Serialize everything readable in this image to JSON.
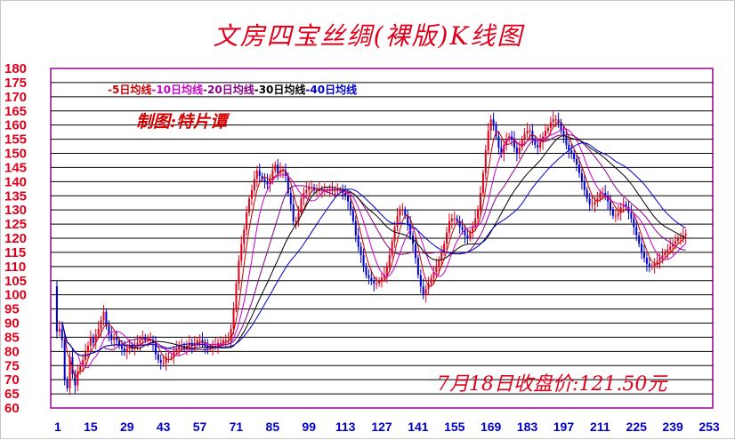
{
  "chart_data": {
    "type": "candlestick",
    "title": "文房四宝丝绸(裸版)K线图",
    "author_note": "制图:特片谭",
    "close_note": "7月18日收盘价:121.50元",
    "ylim": [
      60,
      180
    ],
    "y_ticks": [
      180,
      175,
      170,
      165,
      160,
      155,
      150,
      145,
      140,
      135,
      130,
      125,
      120,
      115,
      110,
      105,
      100,
      95,
      90,
      85,
      80,
      75,
      70,
      65,
      60
    ],
    "x_range": [
      1,
      253
    ],
    "x_ticks": [
      1,
      15,
      29,
      43,
      57,
      71,
      85,
      99,
      113,
      127,
      141,
      155,
      169,
      183,
      197,
      211,
      225,
      239,
      253
    ],
    "legend": [
      {
        "label": "-5日均线",
        "color": "#cc0000"
      },
      {
        "label": "-10日均线",
        "color": "#cc00cc"
      },
      {
        "label": "-20日均线",
        "color": "#880088"
      },
      {
        "label": "-30日均线",
        "color": "#000000"
      },
      {
        "label": "-40日均线",
        "color": "#0000cc"
      }
    ],
    "up_color": "#e0001b",
    "down_color": "#0000cc",
    "series": [
      {
        "name": "close",
        "values": [
          103,
          87,
          88,
          84,
          70,
          67,
          78,
          72,
          68,
          73,
          75,
          77,
          80,
          82,
          85,
          83,
          86,
          88,
          91,
          94,
          89,
          86,
          84,
          85,
          84,
          82,
          81,
          80,
          81,
          82,
          81,
          82,
          83,
          84,
          85,
          84,
          84,
          84,
          83,
          79,
          77,
          76,
          76,
          78,
          78,
          78,
          80,
          81,
          82,
          82,
          81,
          82,
          83,
          82,
          83,
          84,
          84,
          83,
          82,
          81,
          81,
          82,
          82,
          83,
          83,
          84,
          84,
          84,
          88,
          95,
          104,
          112,
          118,
          123,
          129,
          134,
          137,
          141,
          144,
          142,
          141,
          140,
          139,
          141,
          144,
          146,
          143,
          144,
          144,
          142,
          136,
          132,
          126,
          126,
          129,
          134,
          136,
          137,
          138,
          138,
          137,
          137,
          137,
          137,
          137,
          137,
          137,
          137,
          137,
          137,
          137,
          136,
          135,
          133,
          130,
          126,
          121,
          117,
          114,
          110,
          107,
          106,
          105,
          104,
          104,
          105,
          106,
          107,
          110,
          114,
          119,
          124,
          128,
          130,
          130,
          128,
          125,
          121,
          118,
          113,
          107,
          103,
          100,
          102,
          104,
          106,
          108,
          110,
          112,
          115,
          118,
          122,
          126,
          127,
          127,
          126,
          124,
          123,
          121,
          120,
          122,
          124,
          127,
          130,
          136,
          143,
          151,
          158,
          162,
          160,
          156,
          152,
          150,
          153,
          155,
          156,
          155,
          152,
          150,
          152,
          155,
          157,
          158,
          158,
          155,
          153,
          152,
          154,
          156,
          158,
          159,
          161,
          162,
          162,
          161,
          158,
          156,
          153,
          151,
          150,
          148,
          146,
          143,
          140,
          137,
          134,
          132,
          132,
          133,
          134,
          136,
          136,
          135,
          133,
          130,
          128,
          128,
          129,
          131,
          132,
          131,
          129,
          127,
          124,
          121,
          118,
          115,
          113,
          111,
          110,
          110,
          111,
          112,
          113,
          114,
          115,
          116,
          117,
          118,
          119,
          120,
          120,
          121,
          121.5
        ]
      }
    ]
  }
}
